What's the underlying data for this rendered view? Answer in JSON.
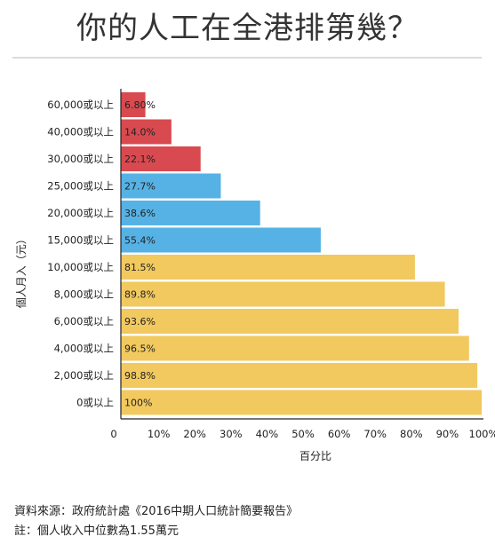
{
  "title": "你的人工在全港排第幾？",
  "colors": {
    "red": "#d84a4f",
    "blue": "#56b2e5",
    "yellow": "#f1c95f",
    "axis": "#222222"
  },
  "chart_data": {
    "type": "bar",
    "orientation": "horizontal",
    "ylabel": "個人月入（元）",
    "xlabel": "百分比",
    "xlim": [
      0,
      100
    ],
    "xticks": [
      "0",
      "10%",
      "20%",
      "30%",
      "40%",
      "50%",
      "60%",
      "70%",
      "80%",
      "90%",
      "100%"
    ],
    "categories": [
      "60,000或以上",
      "40,000或以上",
      "30,000或以上",
      "25,000或以上",
      "20,000或以上",
      "15,000或以上",
      "10,000或以上",
      "8,000或以上",
      "6,000或以上",
      "4,000或以上",
      "2,000或以上",
      "0或以上"
    ],
    "values": [
      6.8,
      14.0,
      22.1,
      27.7,
      38.6,
      55.4,
      81.5,
      89.8,
      93.6,
      96.5,
      98.8,
      100
    ],
    "value_labels": [
      "6.80%",
      "14.0%",
      "22.1%",
      "27.7%",
      "38.6%",
      "55.4%",
      "81.5%",
      "89.8%",
      "93.6%",
      "96.5%",
      "98.8%",
      "100%"
    ],
    "bar_colors": [
      "red",
      "red",
      "red",
      "blue",
      "blue",
      "blue",
      "yellow",
      "yellow",
      "yellow",
      "yellow",
      "yellow",
      "yellow"
    ],
    "grid": false
  },
  "footer": {
    "source": "資料來源：政府統計處《2016中期人口統計簡要報告》",
    "note": "註：個人收入中位數為1.55萬元"
  }
}
